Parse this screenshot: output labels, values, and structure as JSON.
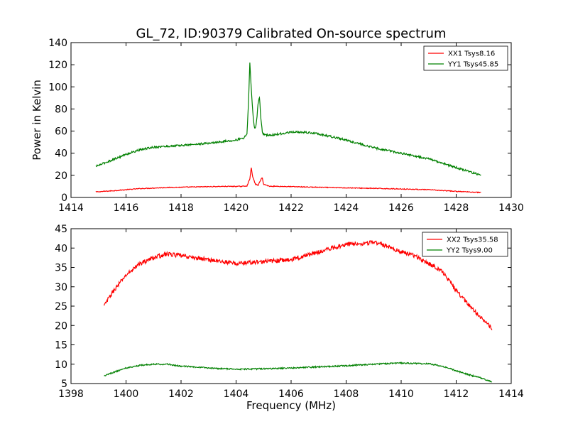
{
  "figure": {
    "title": "GL_72, ID:90379 Calibrated On-source spectrum",
    "xlabel": "Frequency (MHz)",
    "ylabel": "Power in Kelvin"
  },
  "chart_data": [
    {
      "type": "line",
      "xlim": [
        1414,
        1430
      ],
      "ylim": [
        0,
        140
      ],
      "xticks": [
        1414,
        1416,
        1418,
        1420,
        1422,
        1424,
        1426,
        1428,
        1430
      ],
      "yticks": [
        0,
        20,
        40,
        60,
        80,
        100,
        120,
        140
      ],
      "legend_position": "top-right",
      "series": [
        {
          "name": "XX1 Tsys8.16",
          "color": "#ff0000",
          "x": [
            1414.9,
            1415.5,
            1416.5,
            1417.5,
            1418.5,
            1419.5,
            1420.2,
            1420.4,
            1420.5,
            1420.55,
            1420.6,
            1420.7,
            1420.8,
            1420.9,
            1420.95,
            1421.0,
            1421.2,
            1422,
            1423,
            1424,
            1425,
            1426,
            1427,
            1428,
            1428.9
          ],
          "y": [
            5,
            6,
            8,
            9,
            9.5,
            10,
            10,
            10.5,
            17,
            27,
            19,
            12,
            11,
            16,
            18,
            12,
            10.2,
            9.8,
            9.2,
            8.7,
            8.2,
            7.7,
            7,
            5.5,
            4.5
          ]
        },
        {
          "name": "YY1 Tsys45.85",
          "color": "#008000",
          "x": [
            1414.9,
            1415.5,
            1416,
            1416.5,
            1417,
            1418,
            1419,
            1420,
            1420.3,
            1420.4,
            1420.45,
            1420.5,
            1420.55,
            1420.6,
            1420.65,
            1420.7,
            1420.75,
            1420.8,
            1420.85,
            1420.9,
            1420.95,
            1421.0,
            1421.2,
            1422,
            1422.5,
            1423,
            1424,
            1425,
            1426,
            1427,
            1428,
            1428.9
          ],
          "y": [
            28,
            34,
            39,
            43,
            45.5,
            47,
            49,
            52,
            54,
            58,
            85,
            122,
            100,
            80,
            65,
            62,
            70,
            85,
            91,
            72,
            60,
            57,
            56,
            59,
            59,
            57.5,
            52,
            45,
            40,
            35,
            27,
            20
          ]
        }
      ]
    },
    {
      "type": "line",
      "xlim": [
        1398,
        1414
      ],
      "ylim": [
        5,
        45
      ],
      "xticks": [
        1398,
        1400,
        1402,
        1404,
        1406,
        1408,
        1410,
        1412,
        1414
      ],
      "yticks": [
        5,
        10,
        15,
        20,
        25,
        30,
        35,
        40,
        45
      ],
      "legend_position": "top-right",
      "series": [
        {
          "name": "XX2 Tsys35.58",
          "color": "#ff0000",
          "x": [
            1399.2,
            1399.5,
            1400,
            1400.5,
            1401,
            1401.5,
            1402,
            1403,
            1404,
            1405,
            1406,
            1407,
            1407.5,
            1408,
            1408.5,
            1409,
            1409.5,
            1410,
            1410.5,
            1411,
            1411.5,
            1412,
            1412.5,
            1413,
            1413.3
          ],
          "y": [
            25,
            28.5,
            33,
            36,
            37.5,
            38.5,
            38,
            37,
            36,
            36.5,
            37,
            39,
            40,
            41,
            41.2,
            41.5,
            40.5,
            39,
            38,
            36,
            34,
            29,
            25,
            21.5,
            19
          ]
        },
        {
          "name": "YY2 Tsys9.00",
          "color": "#008000",
          "x": [
            1399.2,
            1399.5,
            1400,
            1400.5,
            1401,
            1401.5,
            1402,
            1403,
            1404,
            1405,
            1406,
            1407,
            1408,
            1409,
            1410,
            1411,
            1411.5,
            1412,
            1412.5,
            1413,
            1413.3
          ],
          "y": [
            7,
            7.8,
            9,
            9.7,
            10,
            10,
            9.5,
            9,
            8.7,
            8.8,
            9,
            9.3,
            9.6,
            10,
            10.3,
            10.1,
            9.5,
            8.3,
            7.2,
            6.2,
            5.5
          ]
        }
      ]
    }
  ]
}
